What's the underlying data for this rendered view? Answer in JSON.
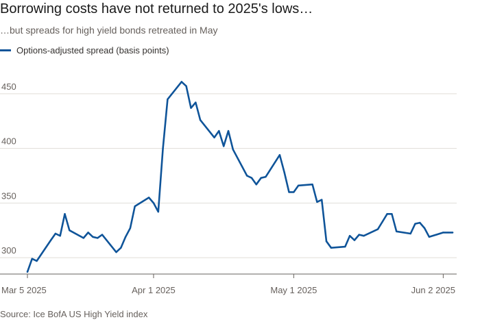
{
  "title": "Borrowing costs have not returned to 2025's lows…",
  "subtitle": "…but spreads for high yield bonds retreated in May",
  "source": "Source: Ice BofA US High Yield index",
  "colors": {
    "line": "#0f5499",
    "grid": "#e0ddd8",
    "axis": "#66605c"
  },
  "chart_data": {
    "type": "line",
    "legend_position": "top-left",
    "grid": true,
    "ylim": [
      285,
      470
    ],
    "yticks": [
      300,
      350,
      400,
      450
    ],
    "ytick_labels": [
      "300",
      "350",
      "400",
      "450"
    ],
    "xlim": [
      "2025-03-05",
      "2025-06-04"
    ],
    "xticks": [
      "2025-03-05",
      "2025-04-01",
      "2025-05-01",
      "2025-06-02"
    ],
    "xtick_labels": [
      "Mar 5 2025",
      "Apr 1 2025",
      "May 1 2025",
      "Jun 2 2025"
    ],
    "series": [
      {
        "name": "Options-adjusted spread (basis points)",
        "x": [
          "2025-03-05",
          "2025-03-06",
          "2025-03-07",
          "2025-03-10",
          "2025-03-11",
          "2025-03-12",
          "2025-03-13",
          "2025-03-14",
          "2025-03-17",
          "2025-03-18",
          "2025-03-19",
          "2025-03-20",
          "2025-03-21",
          "2025-03-24",
          "2025-03-25",
          "2025-03-26",
          "2025-03-27",
          "2025-03-28",
          "2025-03-31",
          "2025-04-01",
          "2025-04-02",
          "2025-04-03",
          "2025-04-04",
          "2025-04-07",
          "2025-04-08",
          "2025-04-09",
          "2025-04-10",
          "2025-04-11",
          "2025-04-14",
          "2025-04-15",
          "2025-04-16",
          "2025-04-17",
          "2025-04-18",
          "2025-04-21",
          "2025-04-22",
          "2025-04-23",
          "2025-04-24",
          "2025-04-25",
          "2025-04-28",
          "2025-04-29",
          "2025-04-30",
          "2025-05-01",
          "2025-05-02",
          "2025-05-05",
          "2025-05-06",
          "2025-05-07",
          "2025-05-08",
          "2025-05-09",
          "2025-05-12",
          "2025-05-13",
          "2025-05-14",
          "2025-05-15",
          "2025-05-16",
          "2025-05-19",
          "2025-05-20",
          "2025-05-21",
          "2025-05-22",
          "2025-05-23",
          "2025-05-26",
          "2025-05-27",
          "2025-05-28",
          "2025-05-29",
          "2025-05-30",
          "2025-06-02",
          "2025-06-03",
          "2025-06-04"
        ],
        "values": [
          287,
          299,
          297,
          316,
          322,
          320,
          340,
          325,
          318,
          323,
          319,
          318,
          321,
          305,
          309,
          319,
          327,
          347,
          355,
          350,
          342,
          400,
          445,
          461,
          457,
          437,
          442,
          426,
          410,
          416,
          402,
          416,
          399,
          375,
          373,
          367,
          373,
          374,
          394,
          378,
          360,
          360,
          366,
          367,
          351,
          353,
          315,
          309,
          310,
          320,
          316,
          321,
          320,
          326,
          333,
          340,
          340,
          324,
          322,
          331,
          332,
          327,
          319,
          323,
          323,
          323
        ]
      }
    ]
  }
}
